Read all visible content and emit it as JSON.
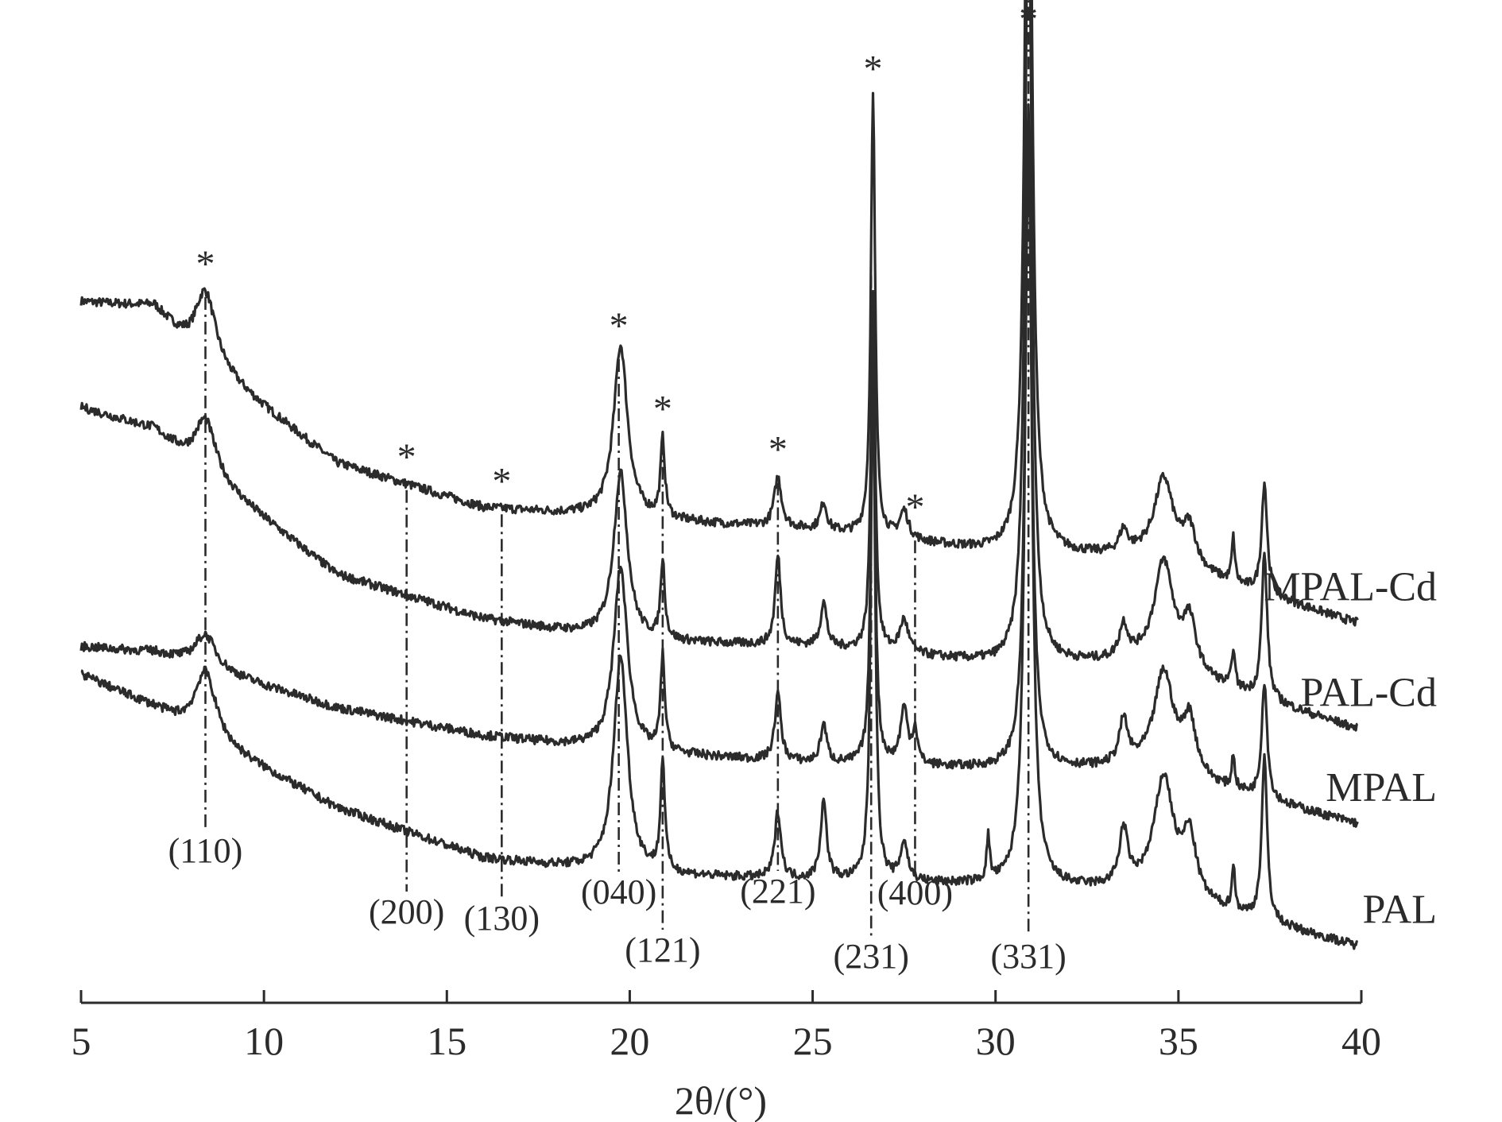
{
  "chart_data": {
    "type": "line",
    "xlabel": "2θ/(°)",
    "ylabel": "",
    "xlim": [
      5,
      40
    ],
    "xticks": [
      5,
      10,
      15,
      20,
      25,
      30,
      35,
      40
    ],
    "xtick_labels": [
      "5",
      "10",
      "15",
      "20",
      "25",
      "30",
      "35",
      "40"
    ],
    "grid": false,
    "y_axis_shown": false,
    "legend": "labels placed at right end of each trace",
    "colors": {
      "line": "#2b2b2b"
    },
    "series": [
      {
        "name": "MPAL-Cd",
        "offset": 0.52,
        "background": [
          [
            5,
            0.58
          ],
          [
            7,
            0.57
          ],
          [
            8,
            0.49
          ],
          [
            12,
            0.29
          ],
          [
            16,
            0.21
          ],
          [
            20,
            0.19
          ],
          [
            25,
            0.17
          ],
          [
            30,
            0.13
          ],
          [
            34,
            0.12
          ],
          [
            40,
            0.0
          ]
        ],
        "peaks": [
          [
            8.4,
            0.13,
            0.35
          ],
          [
            19.75,
            0.31,
            0.23
          ],
          [
            20.9,
            0.14,
            0.07
          ],
          [
            24.05,
            0.09,
            0.12
          ],
          [
            25.3,
            0.05,
            0.1
          ],
          [
            26.65,
            0.79,
            0.07
          ],
          [
            27.5,
            0.05,
            0.14
          ],
          [
            30.9,
            1.7,
            0.11
          ],
          [
            33.5,
            0.04,
            0.14
          ],
          [
            34.6,
            0.15,
            0.32
          ],
          [
            35.3,
            0.07,
            0.22
          ],
          [
            36.5,
            0.08,
            0.05
          ],
          [
            37.35,
            0.2,
            0.09
          ]
        ]
      },
      {
        "name": "PAL-Cd",
        "offset": 0.33,
        "background": [
          [
            5,
            0.58
          ],
          [
            7,
            0.54
          ],
          [
            8,
            0.48
          ],
          [
            12,
            0.28
          ],
          [
            16,
            0.2
          ],
          [
            20,
            0.16
          ],
          [
            25,
            0.15
          ],
          [
            30,
            0.12
          ],
          [
            34,
            0.12
          ],
          [
            40,
            0.0
          ]
        ],
        "peaks": [
          [
            8.4,
            0.1,
            0.35
          ],
          [
            19.75,
            0.3,
            0.23
          ],
          [
            20.9,
            0.14,
            0.07
          ],
          [
            24.05,
            0.16,
            0.09
          ],
          [
            25.3,
            0.08,
            0.1
          ],
          [
            26.65,
            0.65,
            0.07
          ],
          [
            27.5,
            0.06,
            0.14
          ],
          [
            30.9,
            1.45,
            0.11
          ],
          [
            33.5,
            0.06,
            0.14
          ],
          [
            34.6,
            0.19,
            0.32
          ],
          [
            35.3,
            0.09,
            0.22
          ],
          [
            36.5,
            0.07,
            0.05
          ],
          [
            37.35,
            0.26,
            0.09
          ]
        ]
      },
      {
        "name": "MPAL",
        "offset": 0.14,
        "background": [
          [
            5,
            0.34
          ],
          [
            7,
            0.33
          ],
          [
            8,
            0.31
          ],
          [
            12,
            0.23
          ],
          [
            16,
            0.18
          ],
          [
            20,
            0.15
          ],
          [
            25,
            0.13
          ],
          [
            30,
            0.12
          ],
          [
            34,
            0.12
          ],
          [
            40,
            0.02
          ]
        ],
        "peaks": [
          [
            8.4,
            0.06,
            0.35
          ],
          [
            19.75,
            0.33,
            0.23
          ],
          [
            20.9,
            0.17,
            0.07
          ],
          [
            24.05,
            0.12,
            0.1
          ],
          [
            25.3,
            0.07,
            0.1
          ],
          [
            26.65,
            0.72,
            0.07
          ],
          [
            27.5,
            0.1,
            0.12
          ],
          [
            27.8,
            0.06,
            0.08
          ],
          [
            30.9,
            1.12,
            0.11
          ],
          [
            33.5,
            0.08,
            0.14
          ],
          [
            34.6,
            0.18,
            0.32
          ],
          [
            35.3,
            0.1,
            0.22
          ],
          [
            36.5,
            0.06,
            0.05
          ],
          [
            37.35,
            0.21,
            0.09
          ]
        ]
      },
      {
        "name": "PAL",
        "offset": -0.08,
        "background": [
          [
            5,
            0.51
          ],
          [
            7,
            0.45
          ],
          [
            8,
            0.41
          ],
          [
            12,
            0.27
          ],
          [
            16,
            0.18
          ],
          [
            20,
            0.15
          ],
          [
            25,
            0.14
          ],
          [
            30,
            0.13
          ],
          [
            34,
            0.12
          ],
          [
            40,
            0.02
          ]
        ],
        "peaks": [
          [
            8.4,
            0.12,
            0.35
          ],
          [
            19.75,
            0.39,
            0.23
          ],
          [
            20.9,
            0.2,
            0.07
          ],
          [
            24.05,
            0.12,
            0.1
          ],
          [
            25.3,
            0.14,
            0.1
          ],
          [
            26.65,
            0.95,
            0.07
          ],
          [
            27.5,
            0.07,
            0.12
          ],
          [
            29.8,
            0.08,
            0.05
          ],
          [
            30.9,
            1.4,
            0.11
          ],
          [
            33.5,
            0.1,
            0.14
          ],
          [
            34.6,
            0.21,
            0.32
          ],
          [
            35.3,
            0.11,
            0.22
          ],
          [
            36.5,
            0.08,
            0.05
          ],
          [
            37.35,
            0.29,
            0.09
          ]
        ]
      }
    ],
    "reflections": [
      {
        "label": "(110)",
        "x": 8.4
      },
      {
        "label": "(200)",
        "x": 13.9
      },
      {
        "label": "(130)",
        "x": 16.5
      },
      {
        "label": "(040)",
        "x": 19.7
      },
      {
        "label": "(121)",
        "x": 20.9
      },
      {
        "label": "(221)",
        "x": 24.05
      },
      {
        "label": "(231)",
        "x": 26.6
      },
      {
        "label": "(400)",
        "x": 27.8
      },
      {
        "label": "(331)",
        "x": 30.9
      }
    ],
    "asterisk": "*",
    "asterisk_positions": [
      8.4,
      13.9,
      16.5,
      19.7,
      20.9,
      24.05,
      26.65,
      27.8,
      30.9
    ]
  }
}
